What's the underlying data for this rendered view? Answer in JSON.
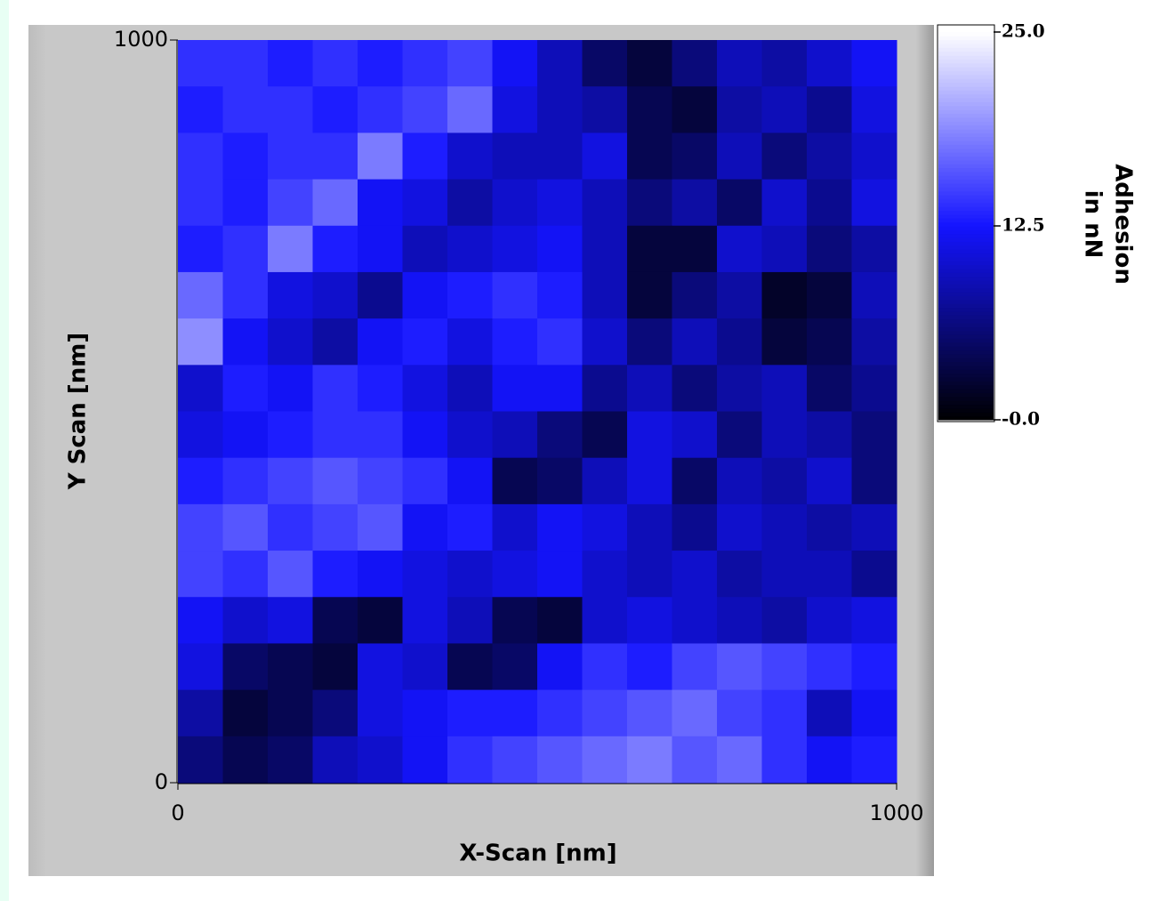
{
  "chart_data": {
    "type": "heatmap",
    "xlabel": "X-Scan [nm]",
    "ylabel": "Y Scan [nm]",
    "colorbar_label": [
      "Adhesion",
      "in nN"
    ],
    "xlim": [
      0,
      1000
    ],
    "ylim": [
      0,
      1000
    ],
    "xticks": [
      0,
      1000
    ],
    "yticks": [
      0,
      1000
    ],
    "zlim": [
      0,
      25
    ],
    "zticks": [
      {
        "value": 0,
        "label": "-0.0"
      },
      {
        "value": 12.5,
        "label": "12.5"
      },
      {
        "value": 25,
        "label": "25.0"
      }
    ],
    "colormap": [
      "#000000",
      "#1414ff",
      "#ffffff"
    ],
    "z": [
      [
        14,
        14,
        13,
        14,
        13,
        14,
        15,
        12,
        9,
        5,
        3,
        6,
        9,
        8,
        10,
        12
      ],
      [
        13,
        14,
        14,
        13,
        14,
        15,
        17,
        11,
        9,
        8,
        4,
        3,
        8,
        9,
        7,
        11
      ],
      [
        14,
        13,
        14,
        14,
        18,
        13,
        10,
        9,
        9,
        11,
        4,
        5,
        9,
        6,
        8,
        10
      ],
      [
        14,
        13,
        15,
        17,
        12,
        11,
        8,
        10,
        11,
        9,
        6,
        8,
        5,
        10,
        7,
        11
      ],
      [
        13,
        14,
        18,
        13,
        12,
        9,
        10,
        11,
        12,
        9,
        3,
        3,
        10,
        9,
        6,
        8
      ],
      [
        17,
        14,
        11,
        10,
        7,
        12,
        13,
        14,
        13,
        9,
        3,
        6,
        8,
        2,
        3,
        9
      ],
      [
        19,
        12,
        10,
        8,
        12,
        13,
        11,
        13,
        14,
        10,
        6,
        9,
        7,
        3,
        4,
        8
      ],
      [
        10,
        13,
        12,
        14,
        13,
        11,
        9,
        12,
        12,
        7,
        9,
        6,
        8,
        9,
        5,
        7
      ],
      [
        11,
        12,
        13,
        14,
        14,
        12,
        10,
        9,
        6,
        4,
        11,
        10,
        6,
        9,
        8,
        6
      ],
      [
        13,
        14,
        15,
        16,
        15,
        14,
        12,
        4,
        5,
        9,
        11,
        5,
        9,
        8,
        10,
        6
      ],
      [
        15,
        16,
        14,
        15,
        16,
        12,
        13,
        10,
        12,
        11,
        9,
        7,
        10,
        9,
        8,
        9
      ],
      [
        15,
        14,
        16,
        13,
        12,
        11,
        10,
        11,
        12,
        10,
        9,
        10,
        8,
        9,
        9,
        7
      ],
      [
        12,
        10,
        11,
        4,
        3,
        11,
        9,
        4,
        3,
        10,
        11,
        10,
        9,
        8,
        10,
        11
      ],
      [
        11,
        5,
        4,
        3,
        11,
        10,
        4,
        5,
        12,
        14,
        13,
        15,
        16,
        15,
        14,
        13
      ],
      [
        8,
        3,
        4,
        6,
        11,
        12,
        13,
        13,
        14,
        15,
        16,
        17,
        15,
        14,
        9,
        12
      ],
      [
        6,
        4,
        5,
        9,
        10,
        12,
        14,
        15,
        16,
        17,
        18,
        16,
        17,
        14,
        12,
        13
      ]
    ]
  }
}
